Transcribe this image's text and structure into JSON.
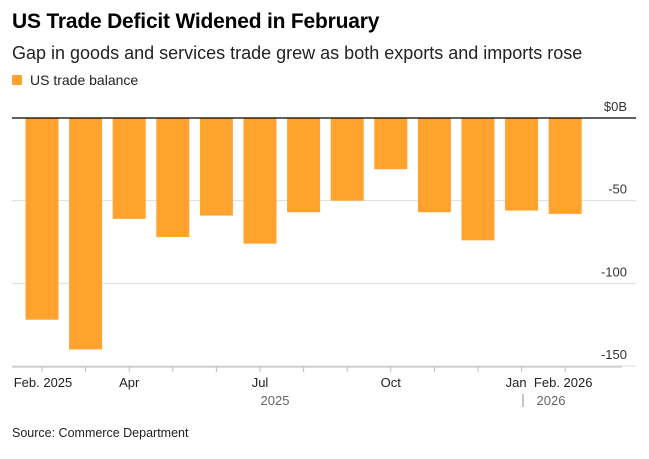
{
  "header": {
    "title": "US Trade Deficit Widened in February",
    "subtitle": "Gap in goods and services trade grew as both exports and imports rose"
  },
  "legend": {
    "label": "US trade balance",
    "color": "#ffa32e"
  },
  "footer": {
    "source": "Source: Commerce Department"
  },
  "chart_data": {
    "type": "bar",
    "title": "US Trade Deficit Widened in February",
    "ylabel": "US trade balance ($B)",
    "xlabel": "",
    "categories": [
      "Feb 2025",
      "Mar 2025",
      "Apr 2025",
      "May 2025",
      "Jun 2025",
      "Jul 2025",
      "Aug 2025",
      "Sep 2025",
      "Oct 2025",
      "Nov 2025",
      "Dec 2025",
      "Jan 2026",
      "Feb 2026"
    ],
    "values": [
      -122,
      -140,
      -61,
      -72,
      -59,
      -76,
      -57,
      -50,
      -31,
      -57,
      -74,
      -56,
      -58
    ],
    "ylim": [
      -150,
      0
    ],
    "yticks": [
      {
        "value": 0,
        "label": "$0B"
      },
      {
        "value": -50,
        "label": "-50"
      },
      {
        "value": -100,
        "label": "-100"
      },
      {
        "value": -150,
        "label": "-150"
      }
    ],
    "xtick_labels": [
      {
        "index": 0,
        "label": "Feb. 2025"
      },
      {
        "index": 2,
        "label": "Apr"
      },
      {
        "index": 5,
        "label": "Jul"
      },
      {
        "index": 8,
        "label": "Oct"
      },
      {
        "index": 11,
        "label": "Jan"
      },
      {
        "index": 12,
        "label": "Feb. 2026"
      }
    ],
    "year_labels": [
      "2025",
      "2026"
    ],
    "bar_color": "#ffa32e",
    "grid": true
  }
}
